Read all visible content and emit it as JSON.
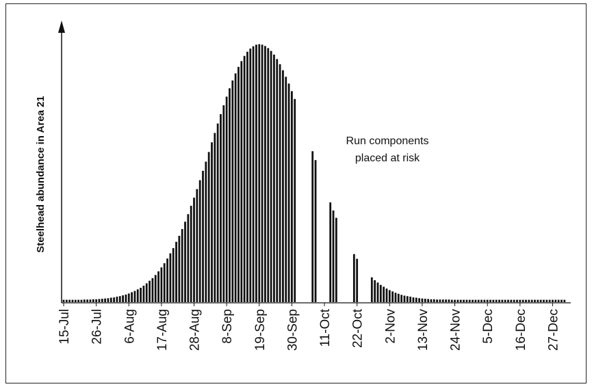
{
  "chart_data": {
    "type": "bar",
    "y_label": "Steelhead abundance in Area 21",
    "annotation": [
      "Run components",
      "placed at risk"
    ],
    "color": "#111111",
    "ylim": [
      0,
      100
    ],
    "categories": [
      "15-Jul",
      null,
      null,
      null,
      null,
      null,
      null,
      null,
      null,
      null,
      null,
      "26-Jul",
      null,
      null,
      null,
      null,
      null,
      null,
      null,
      null,
      null,
      null,
      "6-Aug",
      null,
      null,
      null,
      null,
      null,
      null,
      null,
      null,
      null,
      null,
      "17-Aug",
      null,
      null,
      null,
      null,
      null,
      null,
      null,
      null,
      null,
      null,
      "28-Aug",
      null,
      null,
      null,
      null,
      null,
      null,
      null,
      null,
      null,
      null,
      "8-Sep",
      null,
      null,
      null,
      null,
      null,
      null,
      null,
      null,
      null,
      null,
      "19-Sep",
      null,
      null,
      null,
      null,
      null,
      null,
      null,
      null,
      null,
      null,
      "30-Sep",
      null,
      null,
      null,
      null,
      null,
      null,
      null,
      null,
      null,
      null,
      "11-Oct",
      null,
      null,
      null,
      null,
      null,
      null,
      null,
      null,
      null,
      null,
      "22-Oct",
      null,
      null,
      null,
      null,
      null,
      null,
      null,
      null,
      null,
      null,
      "2-Nov",
      null,
      null,
      null,
      null,
      null,
      null,
      null,
      null,
      null,
      null,
      "13-Nov",
      null,
      null,
      null,
      null,
      null,
      null,
      null,
      null,
      null,
      null,
      "24-Nov",
      null,
      null,
      null,
      null,
      null,
      null,
      null,
      null,
      null,
      null,
      "5-Dec",
      null,
      null,
      null,
      null,
      null,
      null,
      null,
      null,
      null,
      null,
      "16-Dec",
      null,
      null,
      null,
      null,
      null,
      null,
      null,
      null,
      null,
      null,
      "27-Dec",
      null,
      null,
      null,
      null
    ],
    "values": [
      0.9,
      0.9,
      0.9,
      0.9,
      0.9,
      0.9,
      0.9,
      1.0,
      1.0,
      1.0,
      1.1,
      1.1,
      1.2,
      1.3,
      1.4,
      1.5,
      1.7,
      1.8,
      2.1,
      2.3,
      2.6,
      2.9,
      3.3,
      3.8,
      4.3,
      4.9,
      5.5,
      6.3,
      7.2,
      8.2,
      9.2,
      10.4,
      11.8,
      13.3,
      14.9,
      16.7,
      18.7,
      20.7,
      23.1,
      25.4,
      28.0,
      30.8,
      33.7,
      36.9,
      40.0,
      43.3,
      46.7,
      50.3,
      53.8,
      57.5,
      61.2,
      64.8,
      68.4,
      72.0,
      75.4,
      78.7,
      81.9,
      84.9,
      87.6,
      90.1,
      92.3,
      94.3,
      95.9,
      97.1,
      98.0,
      98.6,
      98.8,
      98.6,
      98.1,
      97.3,
      96.2,
      94.8,
      93.1,
      91.1,
      88.8,
      86.3,
      83.7,
      80.8,
      77.8,
      0,
      0,
      0,
      0,
      0,
      57.8,
      54.4,
      0,
      0,
      0,
      0,
      38.2,
      35.1,
      32.3,
      0,
      0,
      0,
      0,
      0,
      18.4,
      16.6,
      0,
      0,
      0,
      0,
      9.5,
      8.4,
      7.5,
      6.6,
      5.9,
      5.2,
      4.6,
      4.1,
      3.6,
      3.2,
      2.8,
      2.5,
      2.3,
      2.1,
      1.8,
      1.7,
      1.5,
      1.4,
      1.3,
      1.2,
      1.1,
      1.1,
      1.0,
      1.0,
      1.0,
      1.0,
      1.0,
      0.9,
      0.9,
      0.9,
      0.9,
      0.9,
      0.9,
      0.9,
      0.9,
      0.9,
      0.9,
      0.9,
      0.9,
      0.9,
      0.9,
      0.9,
      0.9,
      0.9,
      0.9,
      0.9,
      0.9,
      0.9,
      0.9,
      0.9,
      0.9,
      0.9,
      0.9,
      0.9,
      0.9,
      0.9,
      0.9,
      0.9,
      0.9,
      0.9,
      0.9,
      0.9,
      0.9,
      0.9,
      0.9,
      0.9
    ]
  }
}
